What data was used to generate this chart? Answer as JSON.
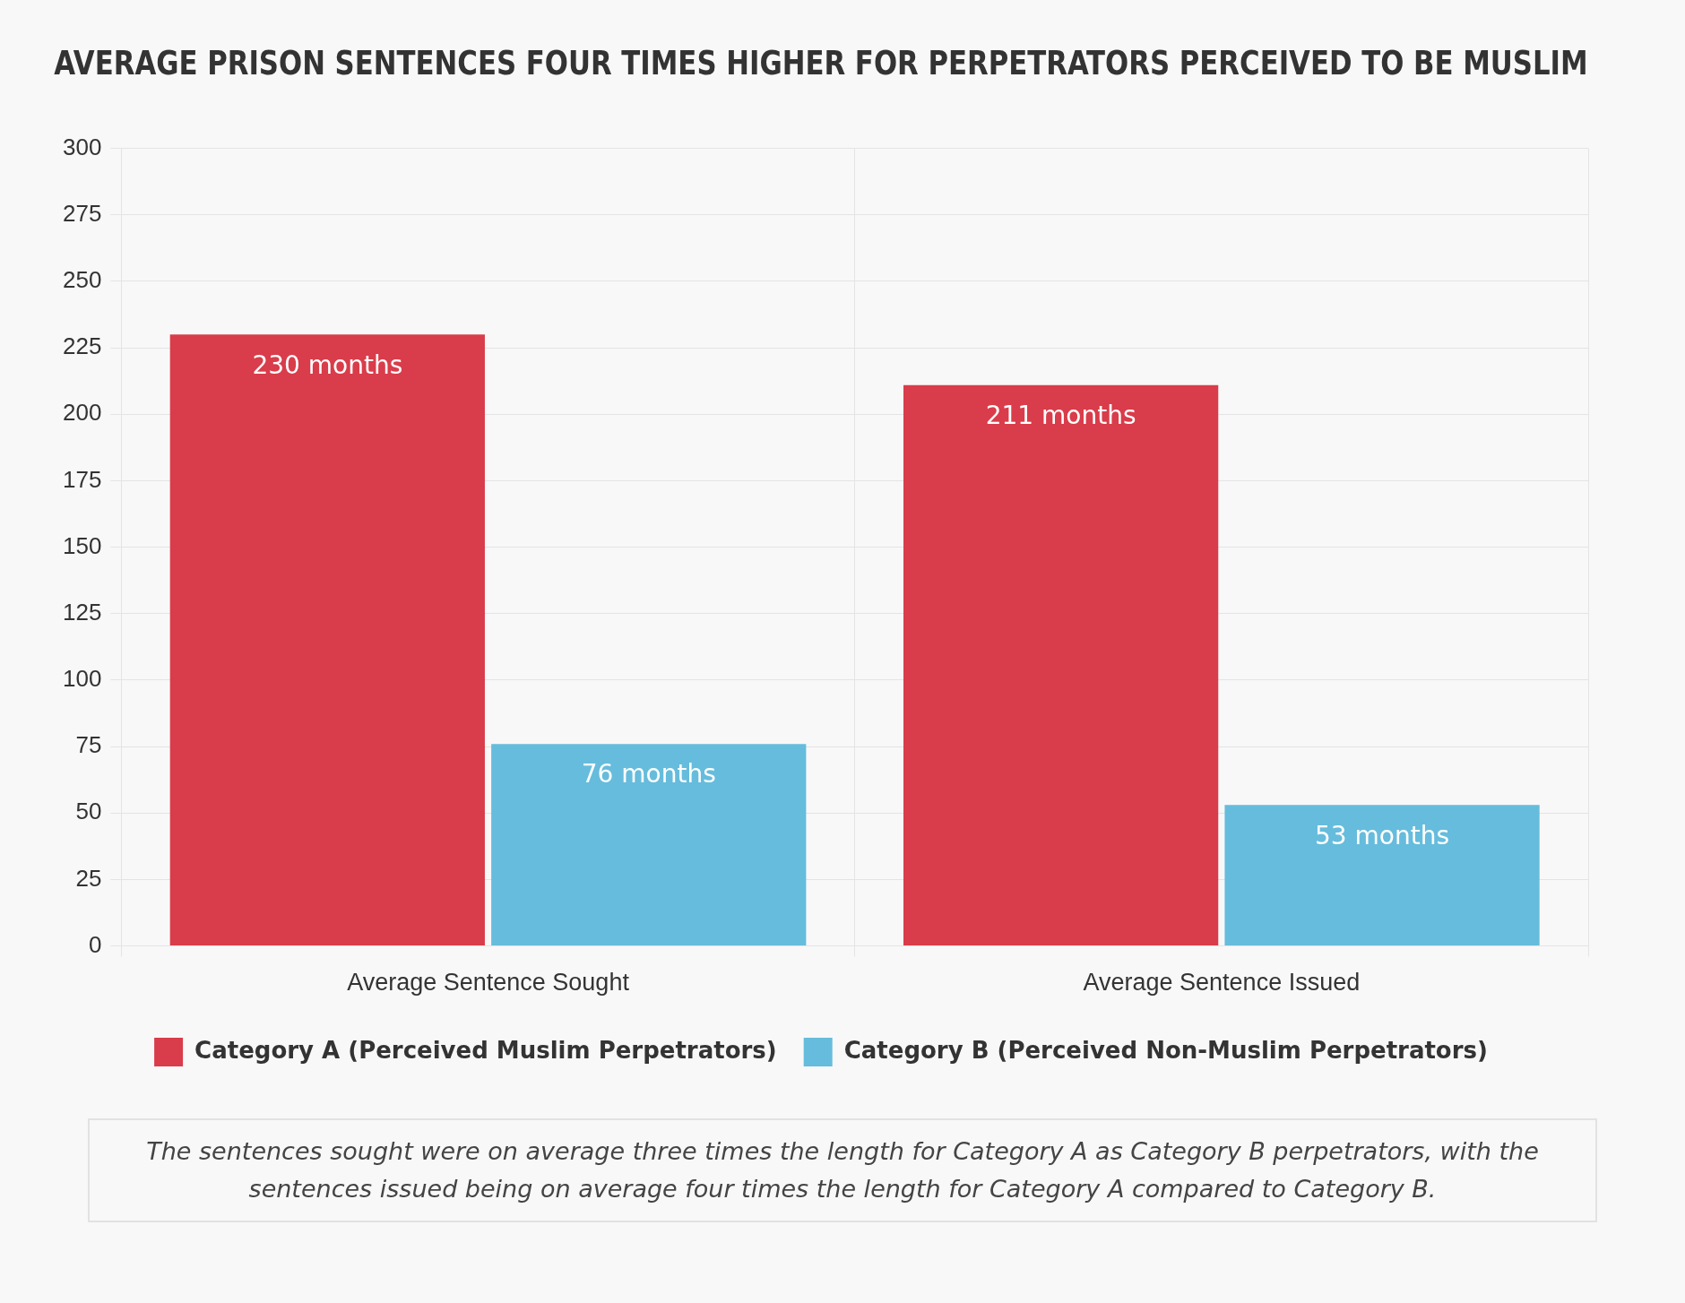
{
  "chart_data": {
    "type": "bar",
    "title": "AVERAGE PRISON SENTENCES FOUR TIMES HIGHER FOR PERPETRATORS PERCEIVED TO BE MUSLIM",
    "categories": [
      "Average Sentence Sought",
      "Average Sentence Issued"
    ],
    "series": [
      {
        "name": "Category A (Perceived Muslim Perpetrators)",
        "color": "#d93c4a",
        "values": [
          230,
          211
        ],
        "value_labels": [
          "230 months",
          "211 months"
        ]
      },
      {
        "name": "Category B (Perceived Non-Muslim Perpetrators)",
        "color": "#66bcdc",
        "values": [
          76,
          53
        ],
        "value_labels": [
          "76 months",
          "53 months"
        ]
      }
    ],
    "ylim": [
      0,
      300
    ],
    "yticks": [
      0,
      25,
      50,
      75,
      100,
      125,
      150,
      175,
      200,
      225,
      250,
      275,
      300
    ],
    "grid": true,
    "legend": "bottom",
    "annotations": [
      "The sentences sought were on average three times the length for Category A as Category B perpetrators, with the sentences issued being on average four times the length for Category A compared to Category B."
    ]
  }
}
